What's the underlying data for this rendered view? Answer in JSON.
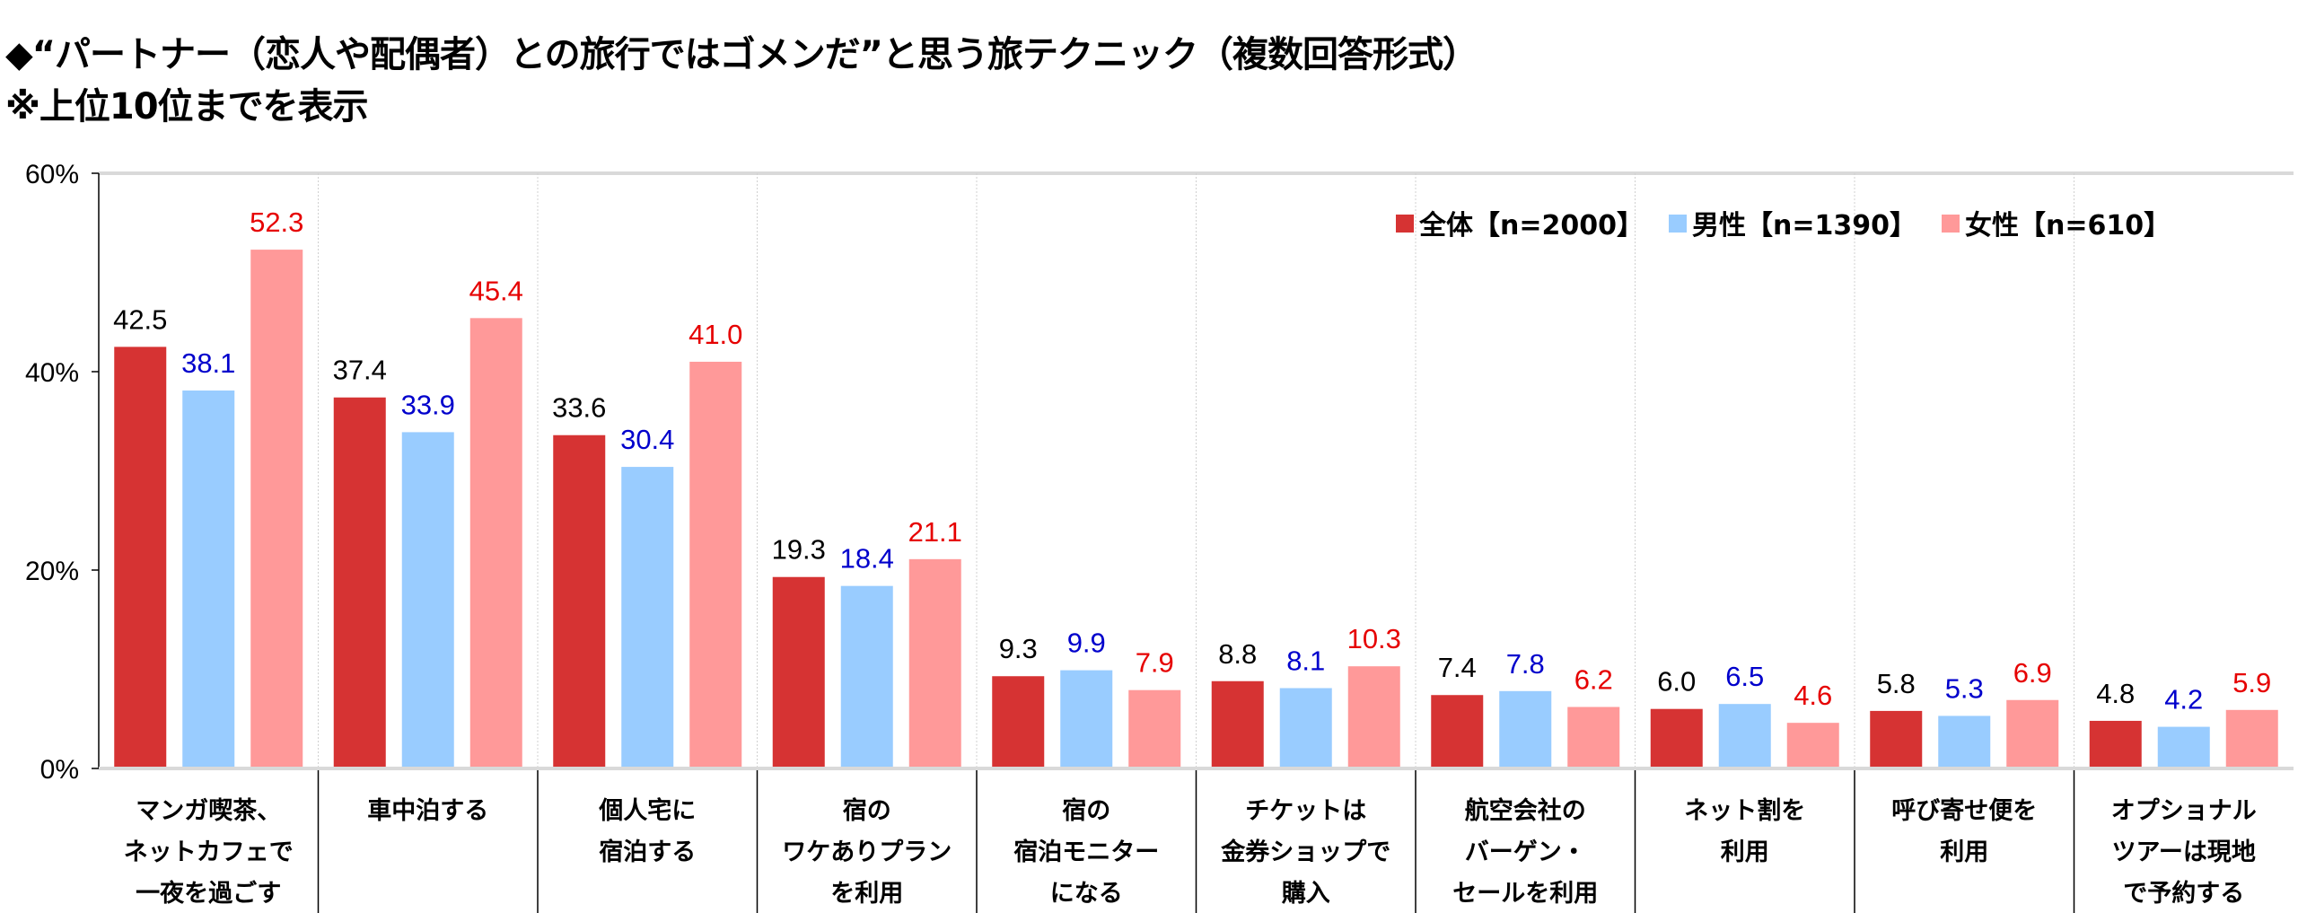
{
  "title": "◆“パートナー（恋人や配偶者）との旅行ではゴメンだ”と思う旅テクニック（複数回答形式）",
  "subtitle": "※上位10位までを表示",
  "chart_data": {
    "type": "bar",
    "title": "“パートナー（恋人や配偶者）との旅行ではゴメンだ”と思う旅テクニック（複数回答形式）",
    "ylim": [
      0,
      60
    ],
    "yticks": [
      "0%",
      "20%",
      "40%",
      "60%"
    ],
    "ytick_values": [
      0,
      20,
      40,
      60
    ],
    "legend_position": "top-right",
    "categories": [
      [
        "マンガ喫茶、",
        "ネットカフェで",
        "一夜を過ごす"
      ],
      [
        "車中泊する"
      ],
      [
        "個人宅に",
        "宿泊する"
      ],
      [
        "宿の",
        "ワケありプラン",
        "を利用"
      ],
      [
        "宿の",
        "宿泊モニター",
        "になる"
      ],
      [
        "チケットは",
        "金券ショップで",
        "購入"
      ],
      [
        "航空会社の",
        "バーゲン・",
        "セールを利用"
      ],
      [
        "ネット割を",
        "利用"
      ],
      [
        "呼び寄せ便を",
        "利用"
      ],
      [
        "オプショナル",
        "ツアーは現地",
        "で予約する"
      ]
    ],
    "series": [
      {
        "name": "全体【n=2000】",
        "color": "#d63333",
        "label_color": "#000000",
        "values": [
          42.5,
          37.4,
          33.6,
          19.3,
          9.3,
          8.8,
          7.4,
          6.0,
          5.8,
          4.8
        ]
      },
      {
        "name": "男性【n=1390】",
        "color": "#99ccff",
        "label_color": "#0000cc",
        "values": [
          38.1,
          33.9,
          30.4,
          18.4,
          9.9,
          8.1,
          7.8,
          6.5,
          5.3,
          4.2
        ]
      },
      {
        "name": "女性【n=610】",
        "color": "#ff9999",
        "label_color": "#e60000",
        "values": [
          52.3,
          45.4,
          41.0,
          21.1,
          7.9,
          10.3,
          6.2,
          4.6,
          6.9,
          5.9
        ]
      }
    ]
  }
}
